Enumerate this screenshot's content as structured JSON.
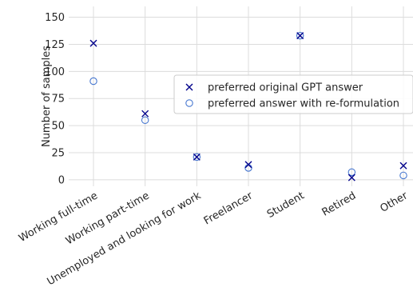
{
  "chart_data": {
    "type": "scatter",
    "title": "",
    "xlabel": "",
    "ylabel": "Number of samples",
    "categories": [
      "Working full-time",
      "Working part-time",
      "Unemployed and looking for work",
      "Freelancer",
      "Student",
      "Retired",
      "Other"
    ],
    "series": [
      {
        "name": "preferred original GPT answer",
        "marker": "x",
        "color": "#00008b",
        "values": [
          126,
          61,
          21,
          14,
          133,
          2,
          13
        ]
      },
      {
        "name": "preferred answer with re-formulation",
        "marker": "circle-open",
        "color": "#4878d0",
        "values": [
          91,
          55,
          21,
          11,
          133,
          7,
          4
        ]
      }
    ],
    "ylim": [
      -6,
      160
    ],
    "yticks": [
      0,
      25,
      50,
      75,
      100,
      125,
      150
    ],
    "grid": true,
    "legend_position": "center-right"
  }
}
